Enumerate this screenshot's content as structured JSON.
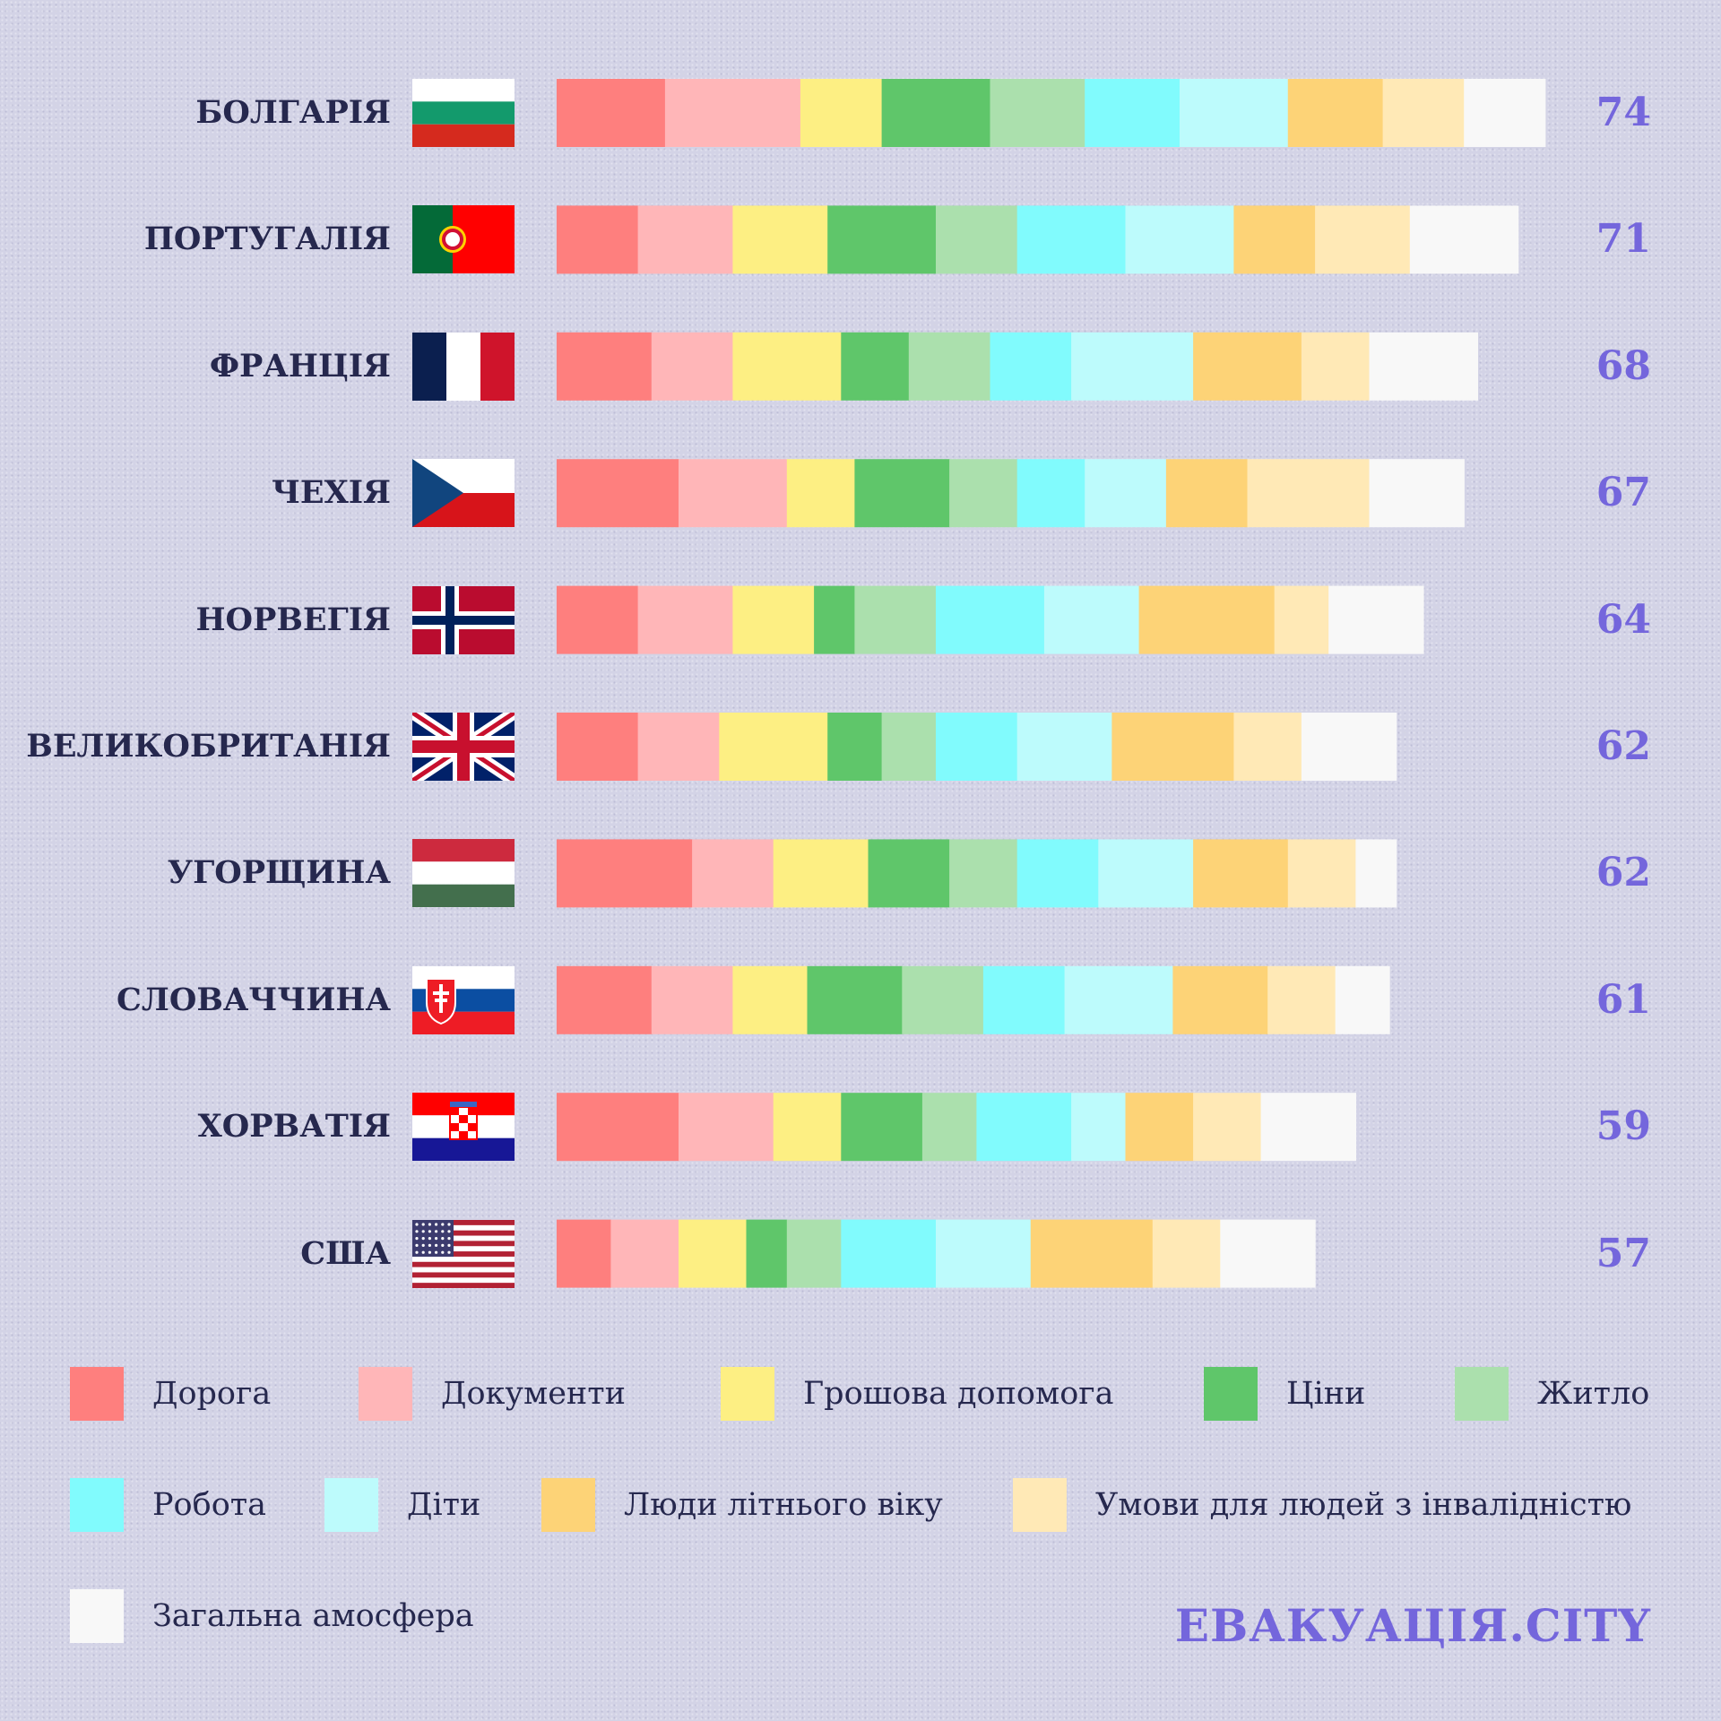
{
  "chart_data": {
    "type": "bar",
    "orientation": "horizontal",
    "stacked": true,
    "categories": [
      "БОЛГАРІЯ",
      "ПОРТУГАЛІЯ",
      "ФРАНЦІЯ",
      "ЧЕХІЯ",
      "НОРВЕГІЯ",
      "ВЕЛИКОБРИТАНІЯ",
      "УГОРЩИНА",
      "СЛОВАЧЧИНА",
      "ХОРВАТІЯ",
      "США"
    ],
    "totals": [
      74,
      71,
      68,
      67,
      64,
      62,
      62,
      61,
      59,
      57
    ],
    "flags": [
      "flag-bulgaria",
      "flag-portugal",
      "flag-france",
      "flag-czechia",
      "flag-norway",
      "flag-uk",
      "flag-hungary",
      "flag-slovakia",
      "flag-croatia",
      "flag-usa"
    ],
    "series": [
      {
        "name": "Дорога",
        "color": "#fe7f7e",
        "values": [
          8,
          6,
          7,
          9,
          6,
          6,
          10,
          7,
          9,
          4
        ]
      },
      {
        "name": "Документи",
        "color": "#ffb6b8",
        "values": [
          10,
          7,
          6,
          8,
          7,
          6,
          6,
          6,
          7,
          5
        ]
      },
      {
        "name": "Грошова допомога",
        "color": "#fdef83",
        "values": [
          6,
          7,
          8,
          5,
          6,
          8,
          7,
          5.5,
          5,
          5
        ]
      },
      {
        "name": "Ціни",
        "color": "#5fc66a",
        "values": [
          8,
          8,
          5,
          7,
          3,
          4,
          6,
          7,
          6,
          3
        ]
      },
      {
        "name": "Житло",
        "color": "#abe0ad",
        "values": [
          7,
          6,
          6,
          5,
          6,
          4,
          5,
          6,
          4,
          4
        ]
      },
      {
        "name": "Робота",
        "color": "#81fbfd",
        "values": [
          7,
          8,
          6,
          5,
          8,
          6,
          6,
          6,
          7,
          7
        ]
      },
      {
        "name": "Діти",
        "color": "#bdfbfc",
        "values": [
          8,
          8,
          9,
          6,
          7,
          7,
          7,
          8,
          4,
          7
        ]
      },
      {
        "name": "Люди літнього віку",
        "color": "#fdd377",
        "values": [
          7,
          6,
          8,
          6,
          10,
          9,
          7,
          7,
          5,
          9
        ]
      },
      {
        "name": "Умови для людей з інвалідністю",
        "color": "#ffe9b6",
        "values": [
          6,
          7,
          5,
          9,
          4,
          5,
          5,
          5,
          5,
          5
        ]
      },
      {
        "name": "Загальна амосфера",
        "color": "#f8f8f8",
        "values": [
          6,
          8,
          8,
          7,
          7,
          7,
          3,
          4,
          7,
          7
        ]
      }
    ]
  },
  "brand": "ЕВАКУАЦІЯ.CITY"
}
